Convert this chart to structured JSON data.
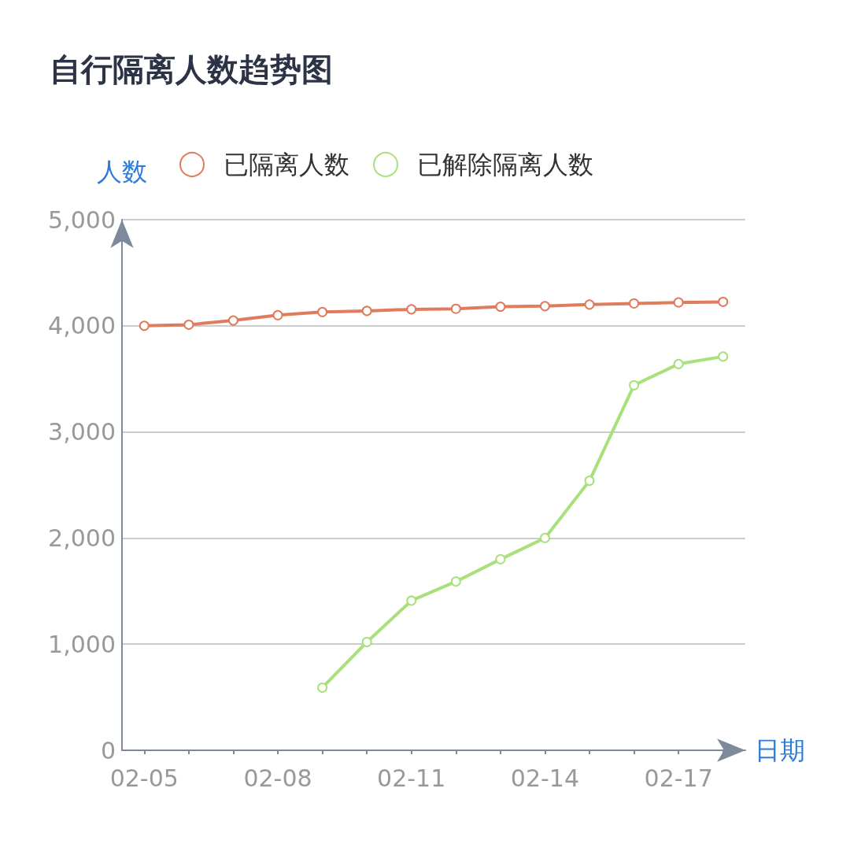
{
  "chart_data": {
    "type": "line",
    "title": "自行隔离人数趋势图",
    "xlabel": "日期",
    "ylabel": "人数",
    "categories": [
      "02-05",
      null,
      null,
      "02-08",
      null,
      null,
      "02-11",
      null,
      null,
      "02-14",
      null,
      null,
      "02-17",
      null
    ],
    "series": [
      {
        "name": "已隔离人数",
        "color": "#e07b5c",
        "values": [
          4000,
          4010,
          4050,
          4100,
          4130,
          4140,
          4155,
          4160,
          4180,
          4185,
          4200,
          4210,
          4220,
          4225
        ]
      },
      {
        "name": "已解除隔离人数",
        "color": "#a8e07a",
        "values": [
          null,
          null,
          null,
          null,
          590,
          1020,
          1410,
          1590,
          1800,
          2000,
          2540,
          3440,
          3640,
          3710
        ]
      }
    ],
    "ylim": [
      0,
      5000
    ],
    "yticks": [
      0,
      {
        "value": 1000,
        "label": "1,000"
      },
      {
        "value": 2000,
        "label": "2,000"
      },
      {
        "value": 3000,
        "label": "3,000"
      },
      {
        "value": 4000,
        "label": "4,000"
      },
      {
        "value": 5000,
        "label": "5,000"
      }
    ],
    "grid": "y",
    "legend": "top",
    "marker": "circle",
    "line_style": "solid"
  }
}
